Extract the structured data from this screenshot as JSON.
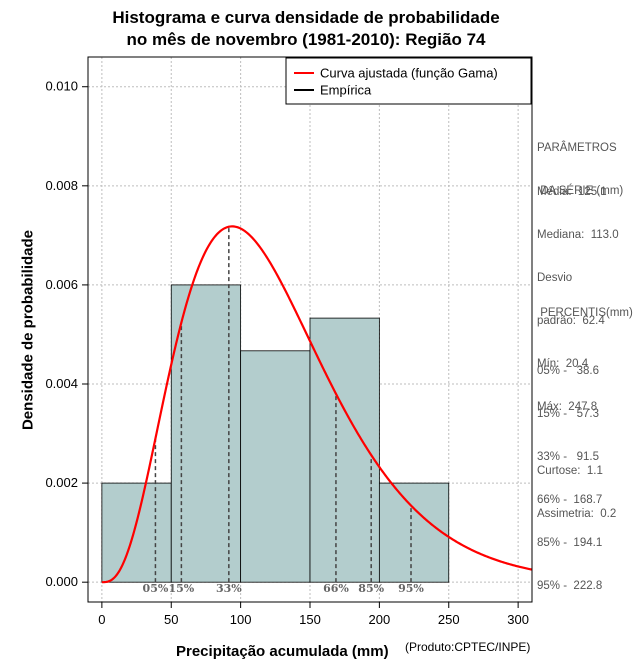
{
  "chart_data": {
    "type": "histogram",
    "title_line1": "Histograma e curva densidade de probabilidade",
    "title_line2": "no mês de novembro (1981-2010): Região 74",
    "xlabel": "Precipitação acumulada (mm)",
    "ylabel": "Densidade de probabilidade",
    "credit": "(Produto:CPTEC/INPE)",
    "xlim": [
      -10,
      310
    ],
    "ylim": [
      -0.0004,
      0.0106
    ],
    "x_ticks": [
      0,
      50,
      100,
      150,
      200,
      250,
      300
    ],
    "x_tick_labels": [
      "0",
      "50",
      "100",
      "150",
      "200",
      "250",
      "300"
    ],
    "y_ticks": [
      0.0,
      0.002,
      0.004,
      0.006,
      0.008,
      0.01
    ],
    "y_tick_labels": [
      "0.000",
      "0.002",
      "0.004",
      "0.006",
      "0.008",
      "0.010"
    ],
    "grid": true,
    "bins": [
      {
        "x0": 0,
        "x1": 50,
        "density": 0.002
      },
      {
        "x0": 50,
        "x1": 100,
        "density": 0.006
      },
      {
        "x0": 100,
        "x1": 150,
        "density": 0.00467
      },
      {
        "x0": 150,
        "x1": 200,
        "density": 0.00533
      },
      {
        "x0": 200,
        "x1": 250,
        "density": 0.002
      }
    ],
    "bar_color": "#b3cdcd",
    "curve": {
      "name": "Curva ajustada (função Gama)",
      "color": "#ff0000",
      "shape": 4.02,
      "scale": 31.1,
      "x_range": [
        0,
        310
      ]
    },
    "legend": {
      "position": "top-right",
      "entries": [
        {
          "label": "Curva ajustada (função Gama)",
          "color": "#ff0000"
        },
        {
          "label": "Empírica",
          "color": "#000000"
        }
      ]
    },
    "percentile_lines": [
      {
        "label": "05%",
        "x": 38.6
      },
      {
        "label": "15%",
        "x": 57.3
      },
      {
        "label": "33%",
        "x": 91.5
      },
      {
        "label": "66%",
        "x": 168.7
      },
      {
        "label": "85%",
        "x": 194.1
      },
      {
        "label": "95%",
        "x": 222.8
      }
    ],
    "percentile_label_color": "#666666"
  },
  "stats_panel": {
    "params_lines": [
      "PARÂMETROS",
      " DA SÉRIE (mm)"
    ],
    "stats_lines": [
      "Média:  125.1",
      "Mediana:  113.0",
      "Desvio",
      "padrão:  62.4",
      "Mín:  20.4",
      "Máx:  247.8"
    ],
    "percentis_title": " PERCENTIS(mm)",
    "percentis_lines": [
      "05% -   38.6",
      "15% -   57.3",
      "33% -   91.5",
      "66% -  168.7",
      "85% -  194.1",
      "95% -  222.8"
    ],
    "extra_lines": [
      "Curtose:  1.1",
      "Assimetria:  0.2"
    ]
  }
}
